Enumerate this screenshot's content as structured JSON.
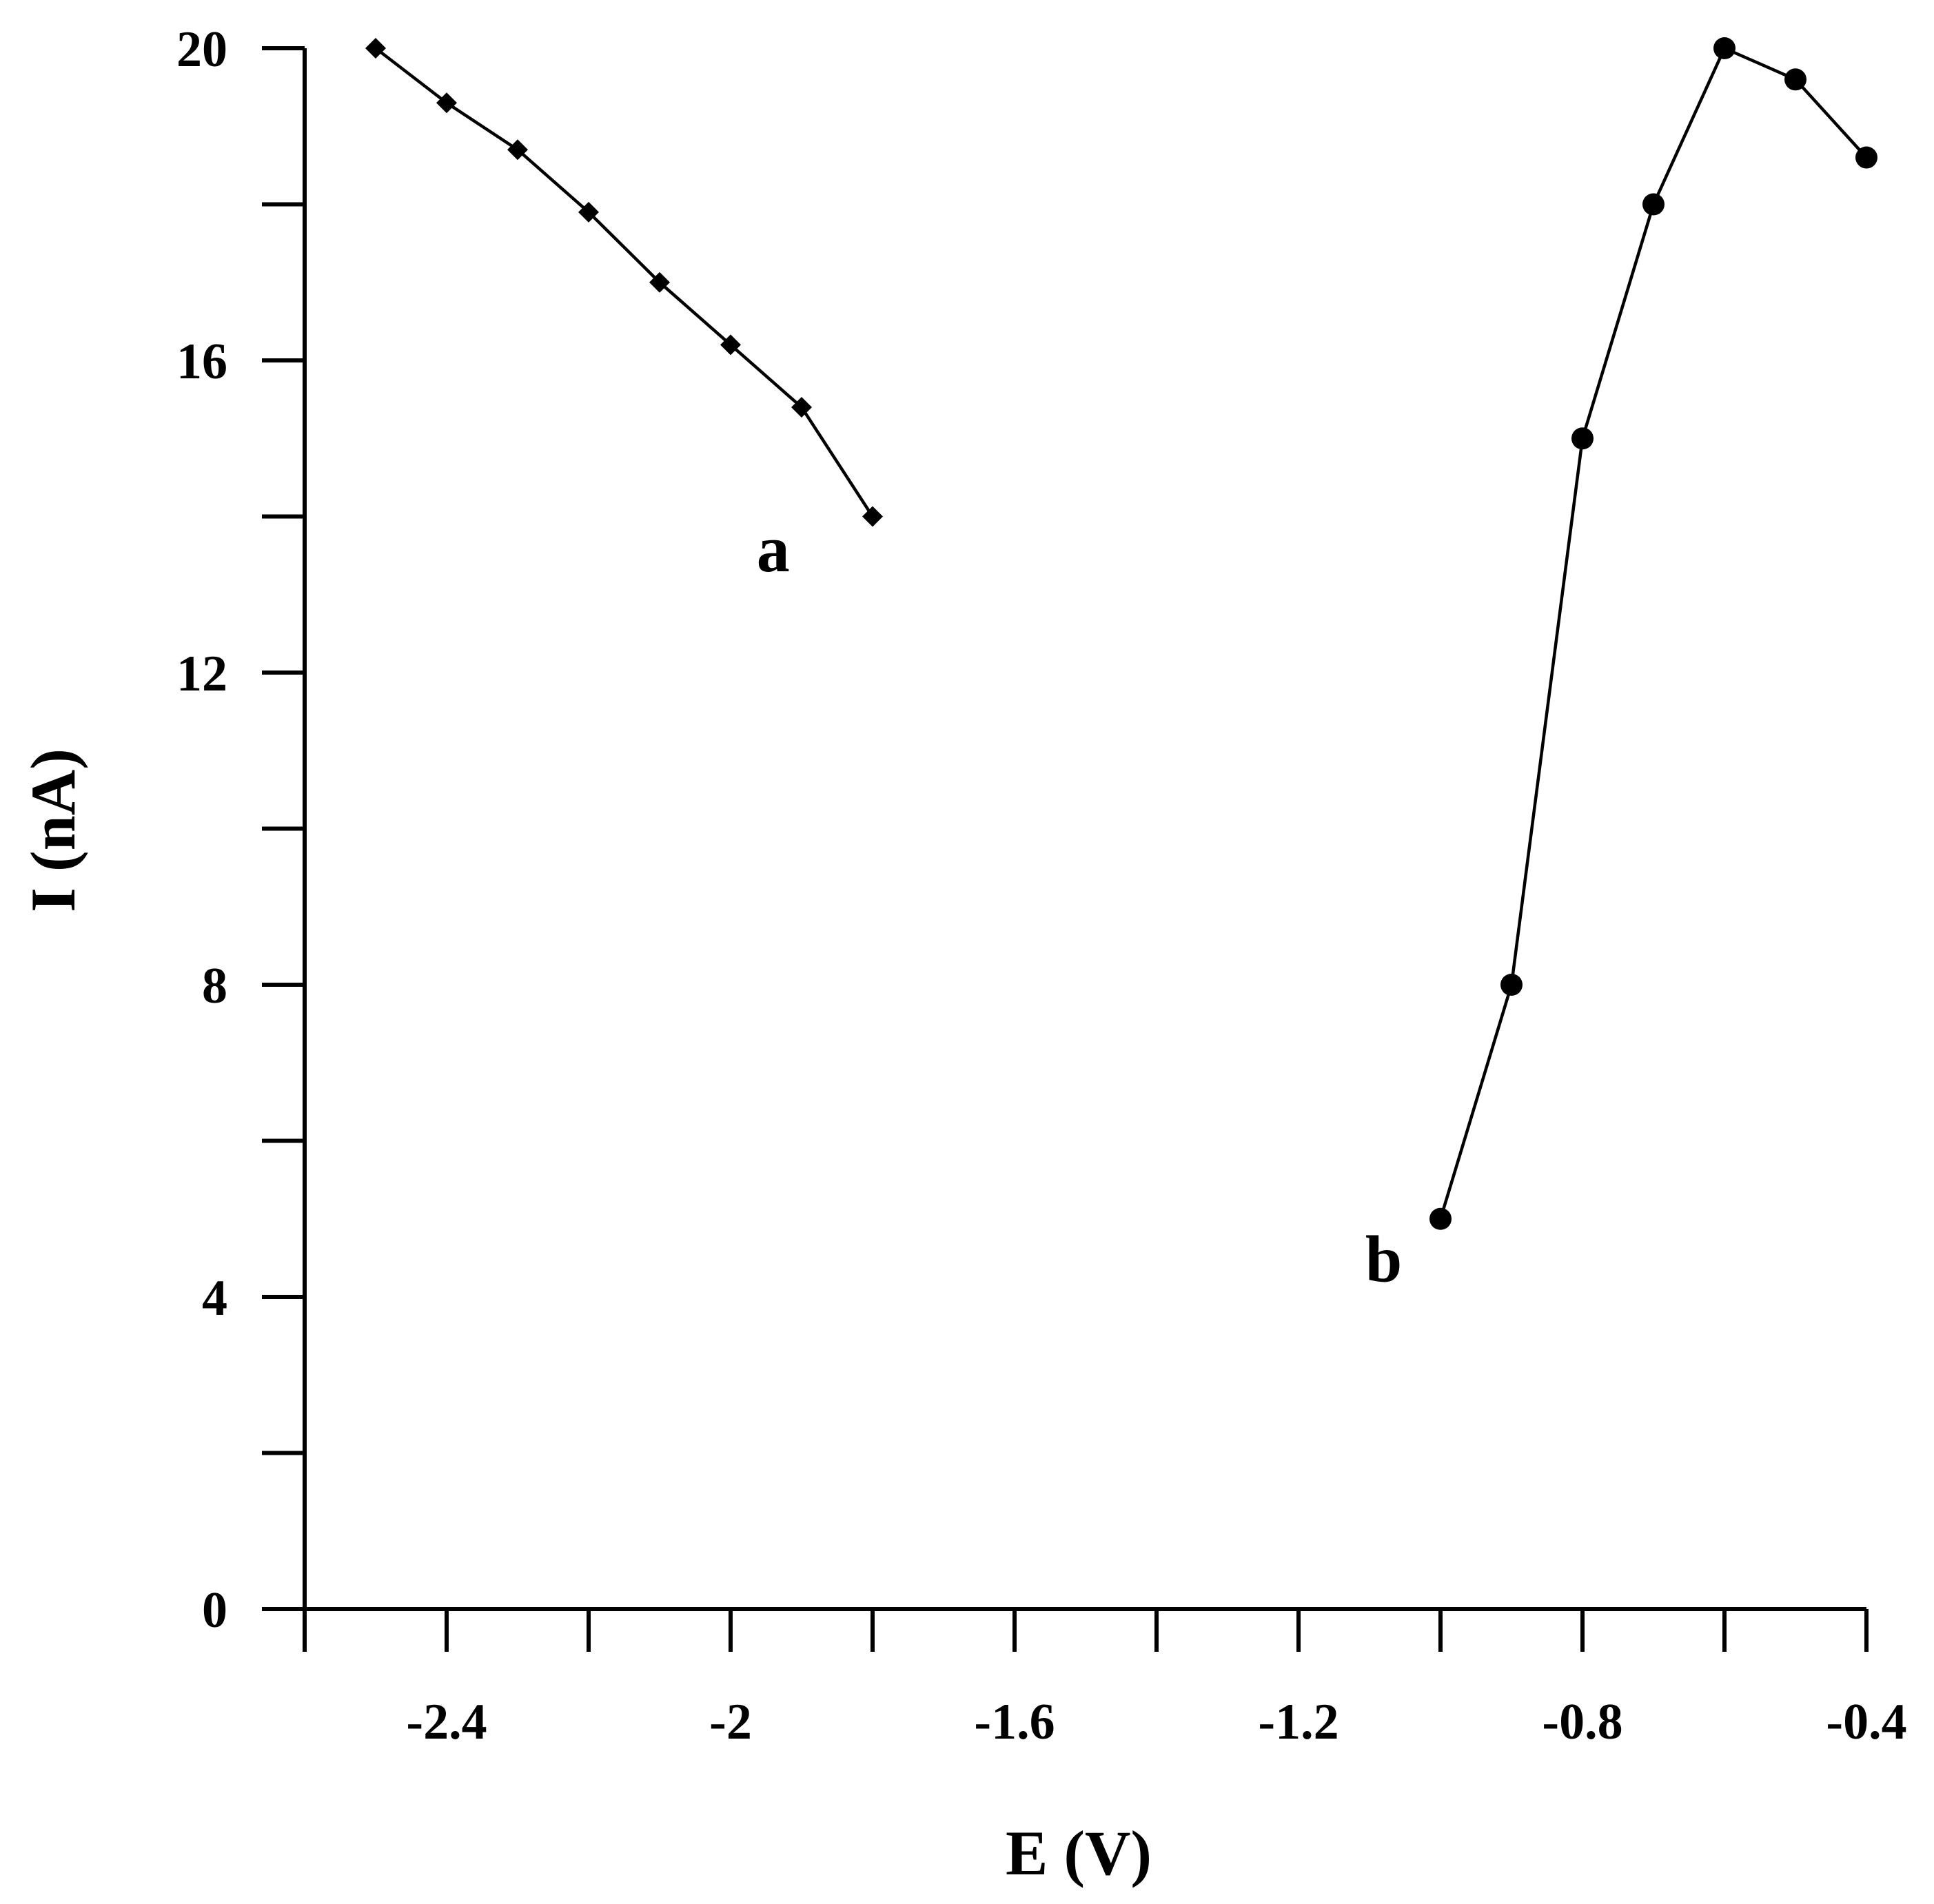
{
  "chart_data": {
    "type": "line",
    "title": "",
    "xlabel": "E (V)",
    "ylabel": "I (nA)",
    "xlim": [
      -2.6,
      -0.4
    ],
    "ylim": [
      0,
      20
    ],
    "x_ticks": [
      -2.6,
      -2.4,
      -2.2,
      -2.0,
      -1.8,
      -1.6,
      -1.4,
      -1.2,
      -1.0,
      -0.8,
      -0.6,
      -0.4
    ],
    "x_tick_labels": [
      {
        "value": -2.4,
        "label": "-2.4"
      },
      {
        "value": -2.0,
        "label": "-2"
      },
      {
        "value": -1.6,
        "label": "-1.6"
      },
      {
        "value": -1.2,
        "label": "-1.2"
      },
      {
        "value": -0.8,
        "label": "-0.8"
      },
      {
        "value": -0.4,
        "label": "-0.4"
      }
    ],
    "y_ticks": [
      0,
      2,
      4,
      6,
      8,
      10,
      12,
      14,
      16,
      18,
      20
    ],
    "y_tick_labels": [
      {
        "value": 0,
        "label": "0"
      },
      {
        "value": 4,
        "label": "4"
      },
      {
        "value": 8,
        "label": "8"
      },
      {
        "value": 12,
        "label": "12"
      },
      {
        "value": 16,
        "label": "16"
      },
      {
        "value": 20,
        "label": "20"
      }
    ],
    "grid": false,
    "legend": "none",
    "series": [
      {
        "name": "a",
        "marker": "diamond",
        "label_pos": {
          "x": -1.94,
          "y": 13.3
        },
        "x": [
          -2.5,
          -2.4,
          -2.3,
          -2.2,
          -2.1,
          -2.0,
          -1.9,
          -1.8
        ],
        "y": [
          20.0,
          19.3,
          18.7,
          17.9,
          17.0,
          16.2,
          15.4,
          14.0
        ]
      },
      {
        "name": "b",
        "marker": "circle",
        "label_pos": {
          "x": -1.08,
          "y": 4.2
        },
        "x": [
          -1.0,
          -0.9,
          -0.8,
          -0.7,
          -0.6,
          -0.5,
          -0.4
        ],
        "y": [
          5.0,
          8.0,
          15.0,
          18.0,
          20.0,
          19.6,
          18.6
        ]
      }
    ]
  }
}
